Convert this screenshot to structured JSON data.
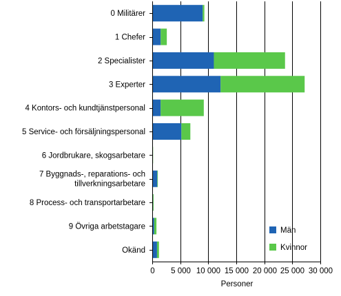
{
  "chart_data": {
    "type": "bar",
    "orientation": "horizontal",
    "stacked": true,
    "categories": [
      [
        "0 Militärer"
      ],
      [
        "1 Chefer"
      ],
      [
        "2 Specialister"
      ],
      [
        "3 Experter"
      ],
      [
        "4 Kontors- och kundtjänstpersonal"
      ],
      [
        "5 Service- och försäljningspersonal"
      ],
      [
        "6 Jordbrukare, skogsarbetare"
      ],
      [
        "7 Byggnads-, reparations- och",
        "tillverkningsarbetare"
      ],
      [
        "8 Process- och transportarbetare"
      ],
      [
        "9 Övriga arbetstagare"
      ],
      [
        "Okänd"
      ]
    ],
    "series": [
      {
        "name": "Män",
        "color": "#1f64b4",
        "values": [
          9000,
          1500,
          11000,
          12200,
          1500,
          5200,
          50,
          900,
          150,
          350,
          850
        ]
      },
      {
        "name": "Kvinnor",
        "color": "#5ac84a",
        "values": [
          300,
          1100,
          12700,
          15000,
          7700,
          1600,
          50,
          100,
          50,
          400,
          350
        ]
      }
    ],
    "xlim": [
      0,
      30000
    ],
    "xticks": [
      0,
      5000,
      10000,
      15000,
      20000,
      25000,
      30000
    ],
    "xtick_labels": [
      "0",
      "5 000",
      "10 000",
      "15 000",
      "20 000",
      "25 000",
      "30 000"
    ],
    "xlabel": "Personer",
    "ylabel": "",
    "title": "",
    "grid": "vertical",
    "legend_position": "bottom-right"
  }
}
